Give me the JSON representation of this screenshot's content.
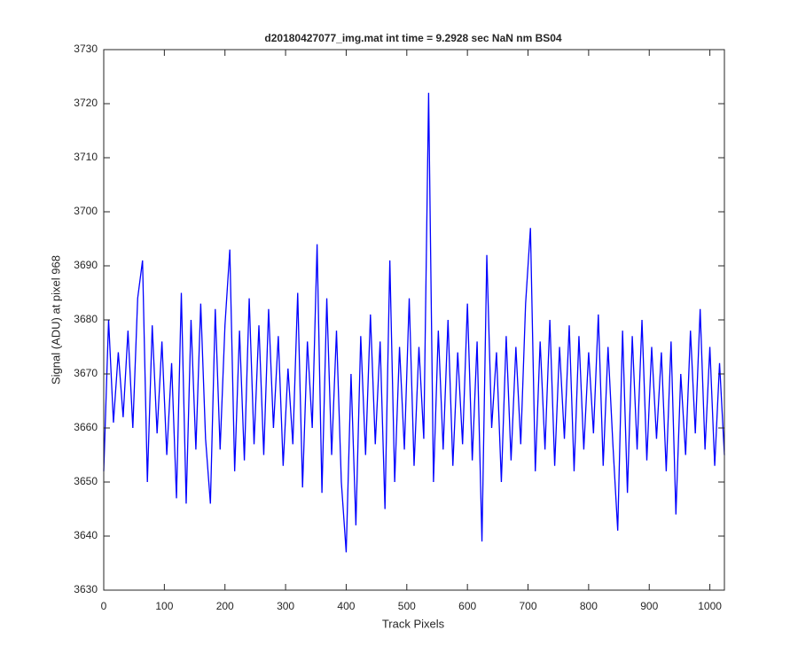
{
  "chart_data": {
    "type": "line",
    "title": "d20180427077_img.mat int time = 9.2928 sec  NaN nm BS04",
    "x_label": "Track Pixels",
    "y_label": "Signal (ADU) at pixel 968",
    "xlim": [
      0,
      1024
    ],
    "ylim": [
      3630,
      3730
    ],
    "xticks": [
      0,
      100,
      200,
      300,
      400,
      500,
      600,
      700,
      800,
      900,
      1000
    ],
    "yticks": [
      3630,
      3640,
      3650,
      3660,
      3670,
      3680,
      3690,
      3700,
      3710,
      3720,
      3730
    ],
    "x": [
      0,
      8,
      16,
      24,
      32,
      40,
      48,
      56,
      64,
      72,
      80,
      88,
      96,
      104,
      112,
      120,
      128,
      136,
      144,
      152,
      160,
      168,
      176,
      184,
      192,
      200,
      208,
      216,
      224,
      232,
      240,
      248,
      256,
      264,
      272,
      280,
      288,
      296,
      304,
      312,
      320,
      328,
      336,
      344,
      352,
      360,
      368,
      376,
      384,
      392,
      400,
      408,
      416,
      424,
      432,
      440,
      448,
      456,
      464,
      472,
      480,
      488,
      496,
      504,
      512,
      520,
      528,
      536,
      544,
      552,
      560,
      568,
      576,
      584,
      592,
      600,
      608,
      616,
      624,
      632,
      640,
      648,
      656,
      664,
      672,
      680,
      688,
      696,
      704,
      712,
      720,
      728,
      736,
      744,
      752,
      760,
      768,
      776,
      784,
      792,
      800,
      808,
      816,
      824,
      832,
      840,
      848,
      856,
      864,
      872,
      880,
      888,
      896,
      904,
      912,
      920,
      928,
      936,
      944,
      952,
      960,
      968,
      976,
      984,
      992,
      1000,
      1008,
      1016,
      1024
    ],
    "series": [
      {
        "color": "#0000ff",
        "values": [
          3652,
          3680,
          3661,
          3674,
          3662,
          3678,
          3660,
          3684,
          3691,
          3650,
          3679,
          3659,
          3676,
          3655,
          3672,
          3647,
          3685,
          3646,
          3680,
          3656,
          3683,
          3658,
          3646,
          3682,
          3656,
          3679,
          3693,
          3652,
          3678,
          3654,
          3684,
          3657,
          3679,
          3655,
          3682,
          3660,
          3677,
          3653,
          3671,
          3657,
          3685,
          3649,
          3676,
          3660,
          3694,
          3648,
          3684,
          3655,
          3678,
          3650,
          3637,
          3670,
          3642,
          3677,
          3655,
          3681,
          3657,
          3676,
          3645,
          3691,
          3650,
          3675,
          3656,
          3684,
          3653,
          3675,
          3658,
          3722,
          3650,
          3678,
          3656,
          3680,
          3653,
          3674,
          3657,
          3683,
          3654,
          3676,
          3639,
          3692,
          3660,
          3674,
          3650,
          3677,
          3654,
          3675,
          3657,
          3683,
          3697,
          3652,
          3676,
          3656,
          3680,
          3653,
          3675,
          3658,
          3679,
          3652,
          3677,
          3656,
          3674,
          3659,
          3681,
          3653,
          3675,
          3657,
          3641,
          3678,
          3648,
          3677,
          3656,
          3680,
          3654,
          3675,
          3658,
          3674,
          3652,
          3676,
          3644,
          3670,
          3655,
          3678,
          3659,
          3682,
          3656,
          3675,
          3653,
          3672,
          3655
        ]
      }
    ]
  }
}
